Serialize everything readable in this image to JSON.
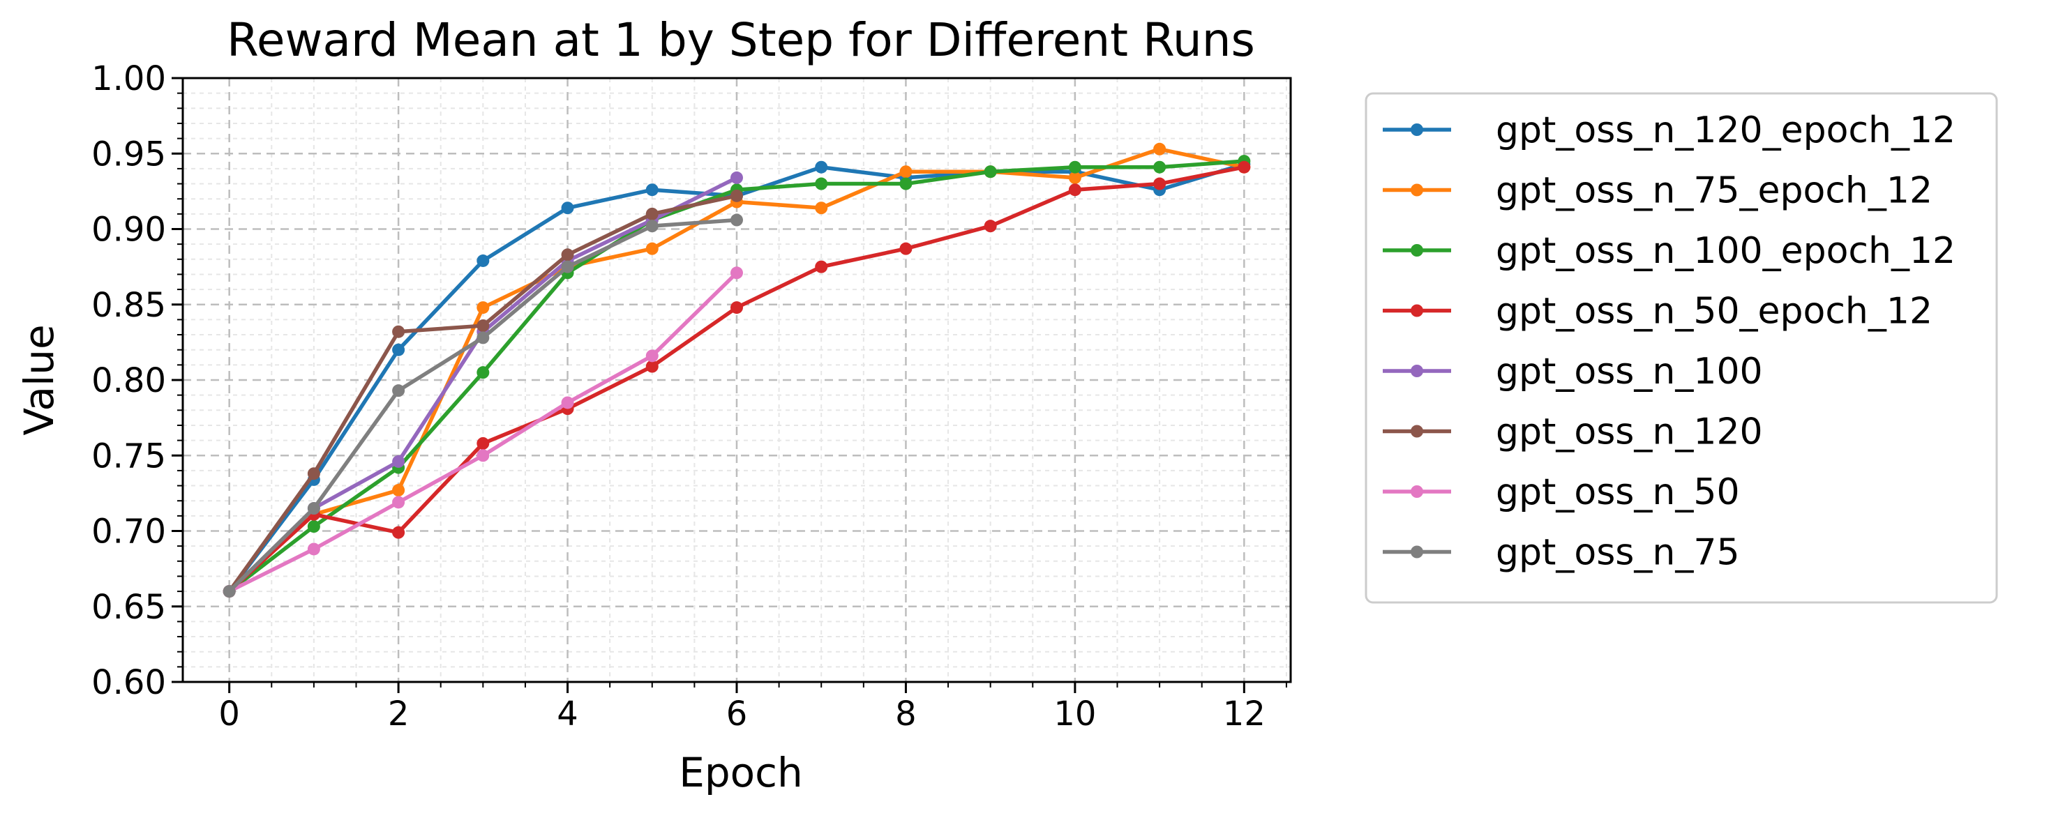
{
  "chart_data": {
    "type": "line",
    "title": "Reward Mean at 1 by Step for Different Runs",
    "xlabel": "Epoch",
    "ylabel": "Value",
    "xlim": [
      -0.55,
      12.55
    ],
    "ylim": [
      0.6,
      1.0
    ],
    "xticks": [
      "0",
      "2",
      "4",
      "6",
      "8",
      "10",
      "12"
    ],
    "yticks": [
      "0.60",
      "0.65",
      "0.70",
      "0.75",
      "0.80",
      "0.85",
      "0.90",
      "0.95",
      "1.00"
    ],
    "grid": true,
    "legend_position": "outside-right",
    "series": [
      {
        "name": "gpt_oss_n_120_epoch_12",
        "color": "#1f77b4",
        "x": [
          0,
          1,
          2,
          3,
          4,
          5,
          6,
          7,
          8,
          9,
          10,
          11,
          12
        ],
        "y": [
          0.66,
          0.734,
          0.82,
          0.879,
          0.914,
          0.926,
          0.922,
          0.941,
          0.934,
          0.938,
          0.938,
          0.926,
          0.943
        ]
      },
      {
        "name": "gpt_oss_n_75_epoch_12",
        "color": "#ff7f0e",
        "x": [
          0,
          1,
          2,
          3,
          4,
          5,
          6,
          7,
          8,
          9,
          10,
          11,
          12
        ],
        "y": [
          0.66,
          0.711,
          0.727,
          0.848,
          0.875,
          0.887,
          0.918,
          0.914,
          0.938,
          0.938,
          0.934,
          0.953,
          0.941
        ]
      },
      {
        "name": "gpt_oss_n_100_epoch_12",
        "color": "#2ca02c",
        "x": [
          0,
          1,
          2,
          3,
          4,
          5,
          6,
          7,
          8,
          9,
          10,
          11,
          12
        ],
        "y": [
          0.66,
          0.703,
          0.742,
          0.805,
          0.871,
          0.906,
          0.926,
          0.93,
          0.93,
          0.938,
          0.941,
          0.941,
          0.945
        ]
      },
      {
        "name": "gpt_oss_n_50_epoch_12",
        "color": "#d62728",
        "x": [
          0,
          1,
          2,
          3,
          4,
          5,
          6,
          7,
          8,
          9,
          10,
          11,
          12
        ],
        "y": [
          0.66,
          0.711,
          0.699,
          0.758,
          0.781,
          0.809,
          0.848,
          0.875,
          0.887,
          0.902,
          0.926,
          0.93,
          0.941
        ]
      },
      {
        "name": "gpt_oss_n_100",
        "color": "#9467bd",
        "x": [
          0,
          1,
          2,
          3,
          4,
          5,
          6
        ],
        "y": [
          0.66,
          0.715,
          0.746,
          0.832,
          0.879,
          0.906,
          0.934
        ]
      },
      {
        "name": "gpt_oss_n_120",
        "color": "#8c564b",
        "x": [
          0,
          1,
          2,
          3,
          4,
          5,
          6
        ],
        "y": [
          0.66,
          0.738,
          0.832,
          0.836,
          0.883,
          0.91,
          0.922
        ]
      },
      {
        "name": "gpt_oss_n_50",
        "color": "#e377c2",
        "x": [
          0,
          1,
          2,
          3,
          4,
          5,
          6
        ],
        "y": [
          0.66,
          0.688,
          0.719,
          0.75,
          0.785,
          0.816,
          0.871
        ]
      },
      {
        "name": "gpt_oss_n_75",
        "color": "#7f7f7f",
        "x": [
          0,
          1,
          2,
          3,
          4,
          5,
          6
        ],
        "y": [
          0.66,
          0.715,
          0.793,
          0.828,
          0.875,
          0.902,
          0.906
        ]
      }
    ]
  }
}
